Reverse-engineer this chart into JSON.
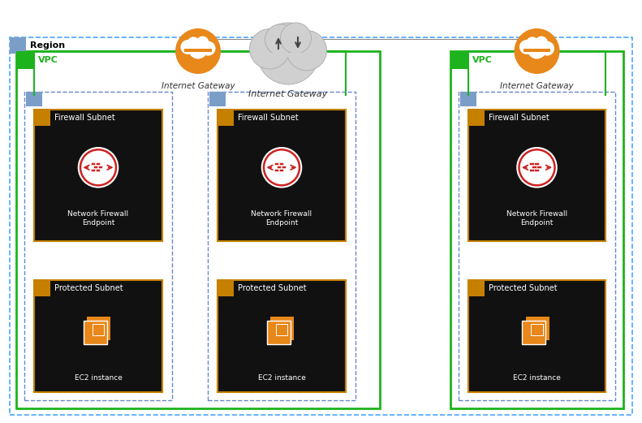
{
  "bg_color": "#ffffff",
  "cloud_top_label": "Internet Gateway",
  "region_label": "Region",
  "vpc_label": "VPC",
  "igw_label": "Internet Gateway",
  "firewall_subnet_label": "Firewall Subnet",
  "nfw_label": "Network Firewall\nEndpoint",
  "protected_subnet_label": "Protected Subnet",
  "ec2_label": "EC2 instance",
  "orange": "#E8871A",
  "dark_amber": "#C68000",
  "green": "#1DB31D",
  "blue_tab": "#7B9EC8",
  "region_dash_color": "#4DA6FF",
  "subnet_dash_color": "#6688CC",
  "dark_box": "#111111",
  "red_icon": "#CC2222",
  "white": "#ffffff",
  "text_dark": "#333333",
  "text_white": "#ffffff",
  "text_green": "#1DB31D",
  "gray_cloud": "#D0D0D0",
  "gray_cloud_edge": "#AAAAAA"
}
